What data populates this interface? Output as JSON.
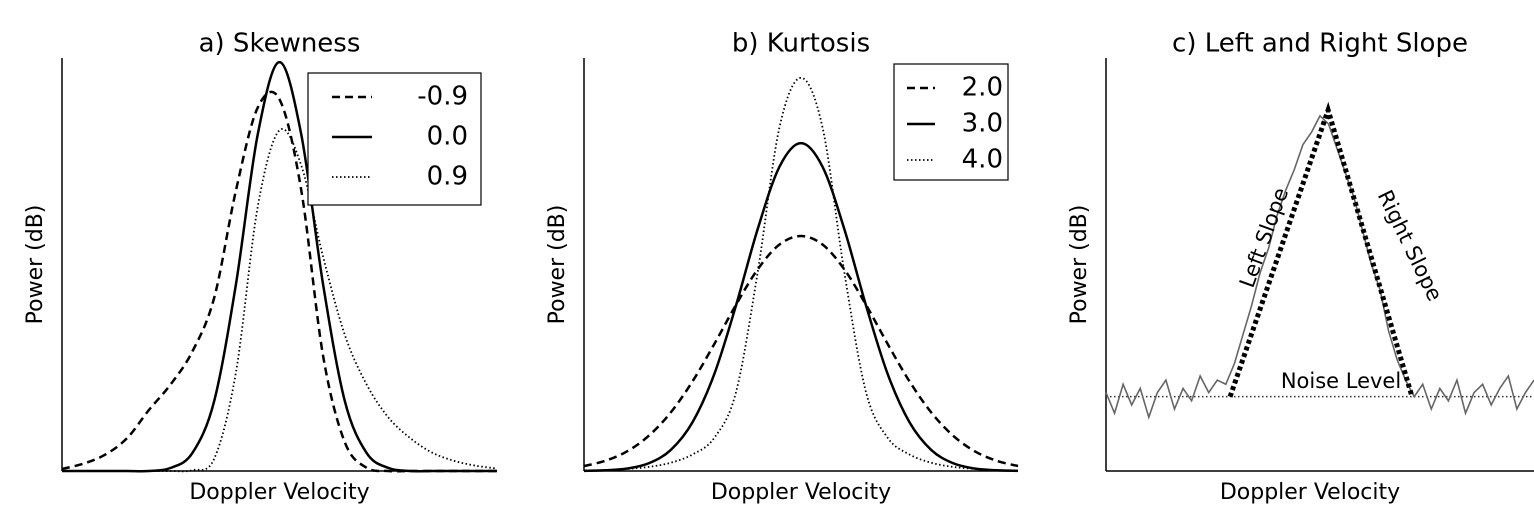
{
  "chart_data": [
    {
      "type": "line",
      "title": "a) Skewness",
      "xlabel": "Doppler Velocity",
      "ylabel": "Power (dB)",
      "xlim": [
        0,
        100
      ],
      "ylim": [
        0,
        100
      ],
      "legend": "upper right",
      "x": [
        0,
        5,
        10,
        15,
        20,
        25,
        30,
        35,
        40,
        45,
        50,
        55,
        60,
        65,
        70,
        75,
        80,
        85,
        90,
        95,
        100
      ],
      "series": [
        {
          "name": "-0.9",
          "color": "#000000",
          "style": "dashed",
          "values": [
            0.5,
            1.8,
            4,
            8,
            14.8,
            21,
            29,
            42,
            68,
            88,
            90,
            68,
            28,
            7,
            0.8,
            0,
            0,
            0,
            0,
            0,
            0
          ]
        },
        {
          "name": "0.0",
          "color": "#000000",
          "style": "solid",
          "values": [
            0,
            0,
            0,
            0,
            0,
            0.75,
            4.4,
            17,
            45.3,
            81.5,
            99,
            81.5,
            45.3,
            17,
            4.4,
            0.75,
            0,
            0,
            0,
            0,
            0
          ]
        },
        {
          "name": "0.9",
          "color": "#000000",
          "style": "dotted",
          "values": [
            0,
            0,
            0,
            0,
            0,
            0,
            0.2,
            3,
            24,
            64,
            82.5,
            74,
            52,
            33,
            21,
            13,
            8,
            4.5,
            2.5,
            1.3,
            0.6
          ]
        }
      ]
    },
    {
      "type": "line",
      "title": "b) Kurtosis",
      "xlabel": "Doppler Velocity",
      "ylabel": "Power (dB)",
      "xlim": [
        0,
        100
      ],
      "ylim": [
        0,
        100
      ],
      "legend": "upper right",
      "x": [
        0,
        5,
        10,
        15,
        20,
        25,
        30,
        35,
        40,
        45,
        50,
        55,
        60,
        65,
        70,
        75,
        80,
        85,
        90,
        95,
        100
      ],
      "series": [
        {
          "name": "2.0",
          "color": "#000000",
          "style": "dashed",
          "values": [
            1.2,
            2.5,
            4.8,
            8.6,
            14.2,
            21.7,
            30.7,
            40.2,
            48.8,
            54.8,
            56.9,
            54.8,
            48.8,
            40.2,
            30.7,
            21.7,
            14.2,
            8.6,
            4.8,
            2.5,
            1.2
          ]
        },
        {
          "name": "3.0",
          "color": "#000000",
          "style": "solid",
          "values": [
            0.04,
            0.17,
            0.6,
            1.9,
            5.1,
            11.8,
            23.4,
            40,
            58.5,
            73.6,
            79.4,
            73.6,
            58.5,
            40,
            23.4,
            11.8,
            5.1,
            1.9,
            0.6,
            0.17,
            0.04
          ]
        },
        {
          "name": "4.0",
          "color": "#000000",
          "style": "dotted",
          "values": [
            0,
            0.2,
            0.5,
            1,
            2,
            4,
            8,
            19,
            48,
            83,
            95.2,
            83,
            48,
            19,
            8,
            4,
            2,
            1,
            0.5,
            0.2,
            0
          ]
        }
      ]
    },
    {
      "type": "line",
      "title": "c) Left and Right Slope",
      "xlabel": "Doppler Velocity",
      "ylabel": "Power (dB)",
      "xlim": [
        0,
        100
      ],
      "ylim": [
        0,
        100
      ],
      "x": [
        0,
        2,
        4,
        6,
        8,
        10,
        12,
        14,
        16,
        18,
        20,
        22,
        24,
        26,
        28,
        30,
        32,
        34,
        36,
        38,
        40,
        42,
        44,
        46,
        48,
        50,
        52,
        54,
        56,
        58,
        60,
        62,
        64,
        66,
        68,
        70,
        72,
        74,
        76,
        78,
        80,
        82,
        84,
        86,
        88,
        90,
        92,
        94,
        96,
        98,
        100
      ],
      "series": [
        {
          "color": "#666666",
          "style": "solid",
          "values": [
            19,
            14,
            21,
            16,
            20,
            13,
            19,
            22,
            15,
            20,
            17,
            23,
            19,
            22,
            21,
            26,
            33,
            40,
            48,
            54,
            62,
            68,
            73,
            79,
            82,
            86,
            84,
            78,
            72,
            66,
            58,
            50,
            44,
            34,
            27,
            22,
            18,
            21,
            15,
            20,
            17,
            22,
            14,
            19,
            21,
            16,
            20,
            23,
            15,
            19,
            22
          ]
        }
      ],
      "slope": {
        "color": "#000000",
        "x": [
          29,
          51.9,
          71.5
        ],
        "values": [
          18,
          87.4,
          18
        ]
      },
      "noise_level": 18,
      "annotations": {
        "left": "Left Slope",
        "right": "Right Slope",
        "noise": "Noise Level"
      }
    }
  ]
}
